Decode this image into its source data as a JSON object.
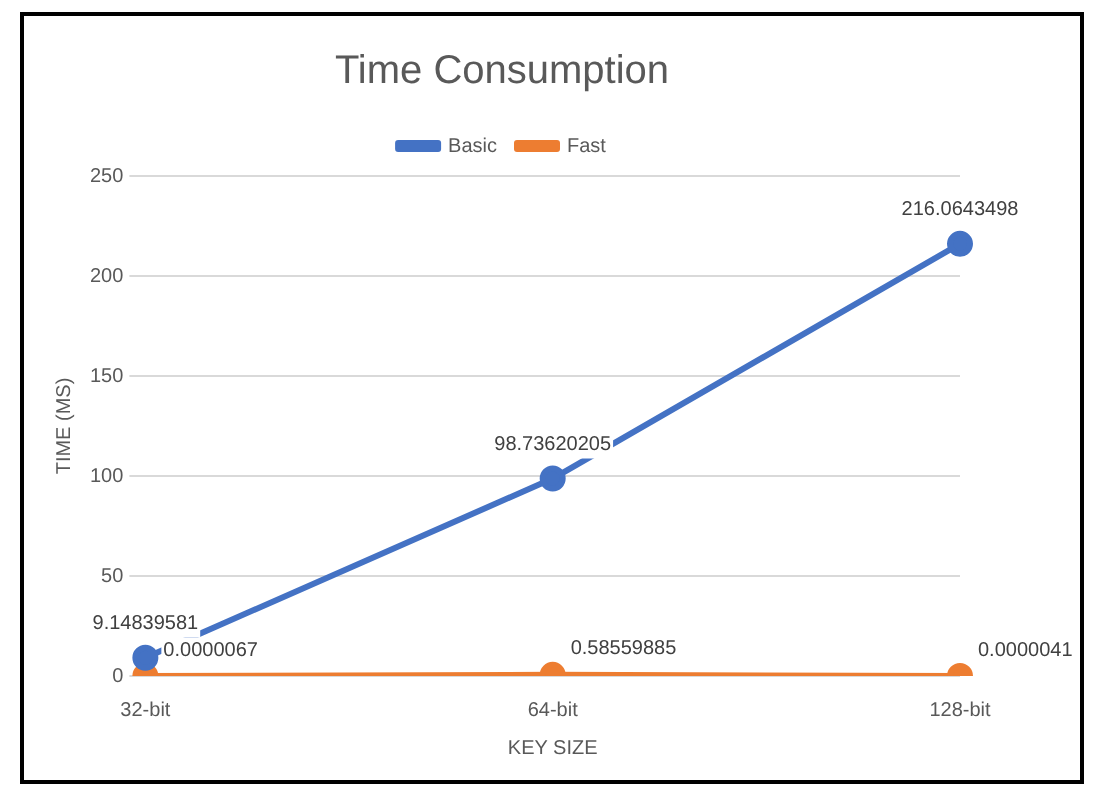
{
  "chart_data": {
    "type": "line",
    "title": "Time Consumption",
    "xlabel": "KEY SIZE",
    "ylabel": "TIME (MS)",
    "categories": [
      "32-bit",
      "64-bit",
      "128-bit"
    ],
    "series": [
      {
        "name": "Basic",
        "color": "#4472c4",
        "values": [
          9.14839581,
          98.73620205,
          216.0643498
        ],
        "value_labels": [
          "9.14839581",
          "98.73620205",
          "216.0643498"
        ]
      },
      {
        "name": "Fast",
        "color": "#ed7d31",
        "values": [
          6.7e-06,
          0.58559885,
          4.1e-06
        ],
        "value_labels": [
          "0.0000067",
          "0.58559885",
          "0.0000041"
        ]
      }
    ],
    "ylim": [
      0,
      250
    ],
    "yticks": [
      0,
      50,
      100,
      150,
      200,
      250
    ],
    "grid": "y",
    "legend": "top",
    "marker": "circle",
    "line_style": "solid"
  }
}
